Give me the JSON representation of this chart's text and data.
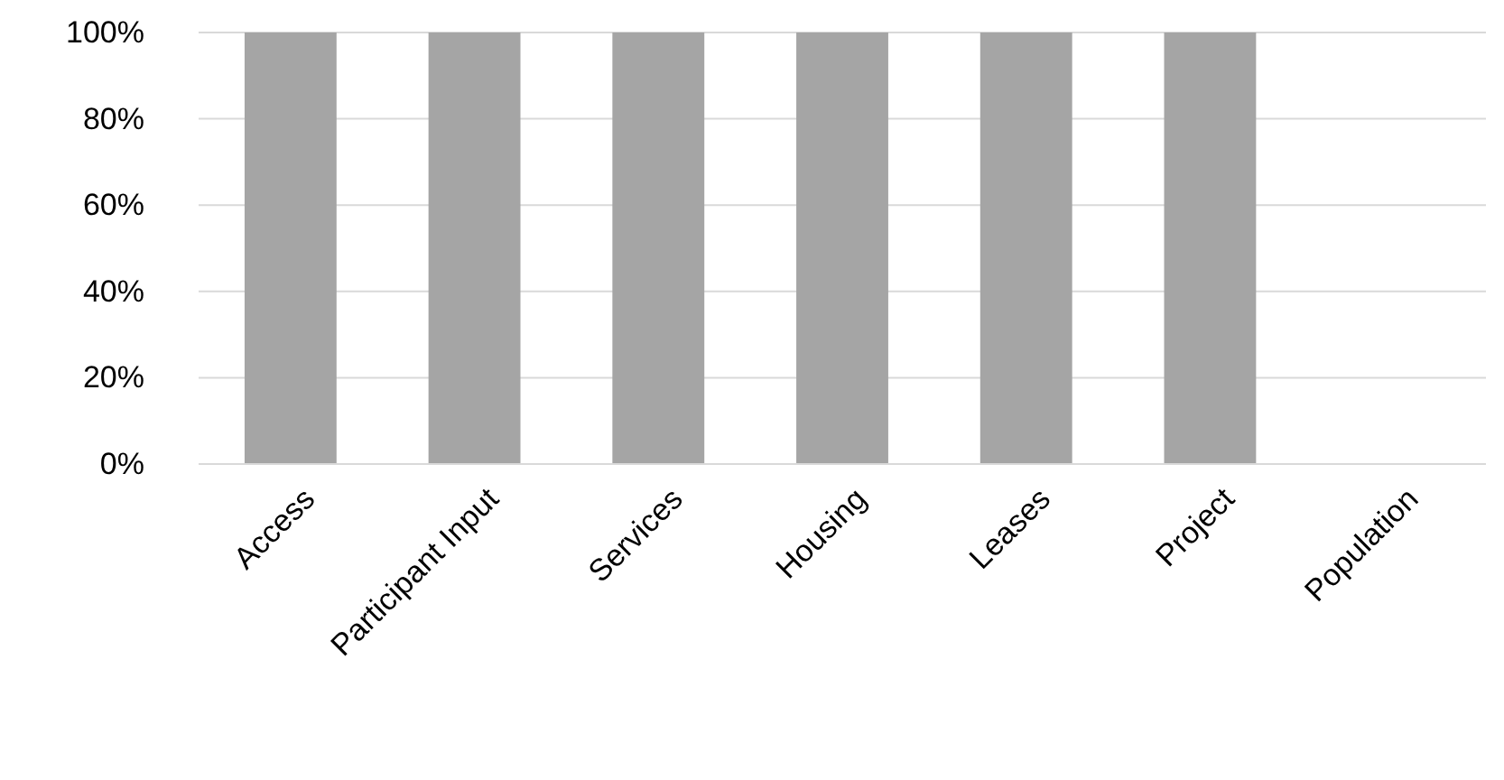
{
  "chart_data": {
    "type": "bar",
    "categories": [
      "Access",
      "Participant Input",
      "Services",
      "Housing",
      "Leases",
      "Project",
      "Population"
    ],
    "values": [
      100,
      100,
      100,
      100,
      100,
      100,
      0
    ],
    "color": "#a5a5a5",
    "ylim": [
      0,
      100
    ],
    "yticks": [
      {
        "value": 0,
        "label": "0%"
      },
      {
        "value": 20,
        "label": "20%"
      },
      {
        "value": 40,
        "label": "40%"
      },
      {
        "value": 60,
        "label": "60%"
      },
      {
        "value": 80,
        "label": "80%"
      },
      {
        "value": 100,
        "label": "100%"
      }
    ],
    "grid": "y"
  }
}
